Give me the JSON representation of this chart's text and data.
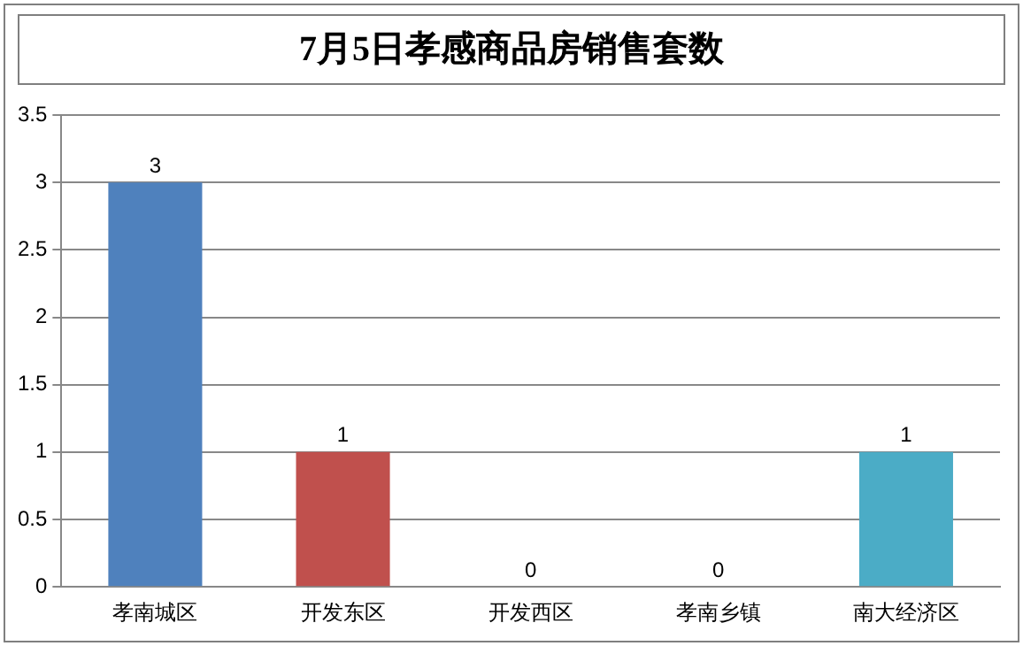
{
  "chart_data": {
    "type": "bar",
    "title": "7月5日孝感商品房销售套数",
    "categories": [
      "孝南城区",
      "开发东区",
      "开发西区",
      "孝南乡镇",
      "南大经济区"
    ],
    "values": [
      3,
      1,
      0,
      0,
      1
    ],
    "colors": [
      "#4f81bd",
      "#c0504d",
      "#9bbb59",
      "#8064a2",
      "#4bacc6"
    ],
    "ylim": [
      0,
      3.5
    ],
    "yticks": [
      0,
      0.5,
      1,
      1.5,
      2,
      2.5,
      3,
      3.5
    ],
    "grid": "y",
    "data_labels": true,
    "legend": false
  }
}
